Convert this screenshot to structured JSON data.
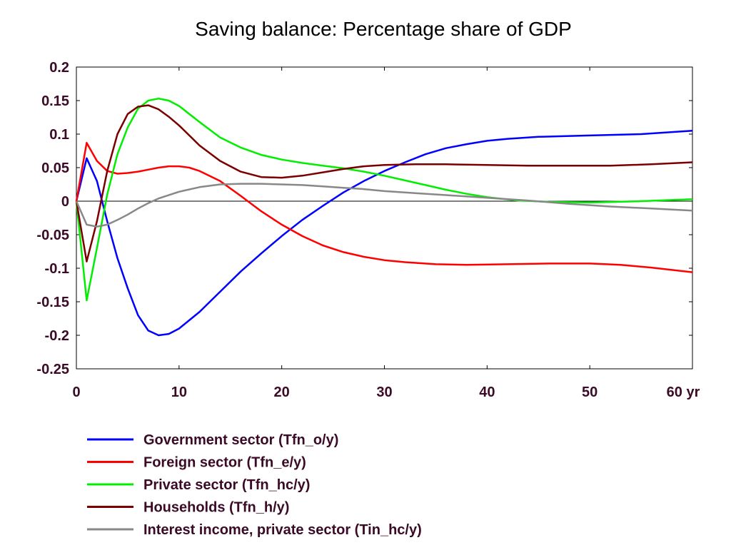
{
  "chart_data": {
    "type": "line",
    "title": "Saving balance: Percentage share of GDP",
    "xlabel": "",
    "ylabel": "",
    "x_unit_label": "yr",
    "xlim": [
      0,
      60
    ],
    "ylim": [
      -0.25,
      0.2
    ],
    "x_ticks": [
      0,
      10,
      20,
      30,
      40,
      50,
      60
    ],
    "x_tick_labels": [
      "0",
      "10",
      "20",
      "30",
      "40",
      "50",
      "60 yr"
    ],
    "y_ticks": [
      0.2,
      0.15,
      0.1,
      0.05,
      0,
      -0.05,
      -0.1,
      -0.15,
      -0.2,
      -0.25
    ],
    "y_tick_labels": [
      "0.2",
      "0.15",
      "0.1",
      "0.05",
      "0",
      "-0.05",
      "-0.1",
      "-0.15",
      "-0.2",
      "-0.25"
    ],
    "grid": false,
    "zero_line": true,
    "legend_position": "below",
    "series": [
      {
        "name": "Government sector (Tfn_o/y)",
        "color": "#0000ff",
        "points": [
          [
            0,
            0
          ],
          [
            1,
            0.064
          ],
          [
            2,
            0.03
          ],
          [
            3,
            -0.03
          ],
          [
            4,
            -0.085
          ],
          [
            5,
            -0.13
          ],
          [
            6,
            -0.17
          ],
          [
            7,
            -0.193
          ],
          [
            8,
            -0.2
          ],
          [
            9,
            -0.198
          ],
          [
            10,
            -0.19
          ],
          [
            12,
            -0.165
          ],
          [
            14,
            -0.135
          ],
          [
            16,
            -0.105
          ],
          [
            18,
            -0.078
          ],
          [
            20,
            -0.052
          ],
          [
            22,
            -0.028
          ],
          [
            24,
            -0.007
          ],
          [
            26,
            0.013
          ],
          [
            28,
            0.03
          ],
          [
            30,
            0.045
          ],
          [
            32,
            0.058
          ],
          [
            34,
            0.07
          ],
          [
            36,
            0.079
          ],
          [
            38,
            0.085
          ],
          [
            40,
            0.09
          ],
          [
            42,
            0.093
          ],
          [
            45,
            0.096
          ],
          [
            50,
            0.098
          ],
          [
            55,
            0.1
          ],
          [
            60,
            0.105
          ]
        ]
      },
      {
        "name": "Foreign sector (Tfn_e/y)",
        "color": "#ff0000",
        "points": [
          [
            0,
            0
          ],
          [
            1,
            0.087
          ],
          [
            2,
            0.06
          ],
          [
            3,
            0.045
          ],
          [
            4,
            0.041
          ],
          [
            5,
            0.042
          ],
          [
            6,
            0.044
          ],
          [
            7,
            0.047
          ],
          [
            8,
            0.05
          ],
          [
            9,
            0.052
          ],
          [
            10,
            0.052
          ],
          [
            11,
            0.05
          ],
          [
            12,
            0.045
          ],
          [
            14,
            0.03
          ],
          [
            16,
            0.008
          ],
          [
            18,
            -0.015
          ],
          [
            20,
            -0.035
          ],
          [
            22,
            -0.052
          ],
          [
            24,
            -0.066
          ],
          [
            26,
            -0.076
          ],
          [
            28,
            -0.083
          ],
          [
            30,
            -0.088
          ],
          [
            32,
            -0.091
          ],
          [
            35,
            -0.094
          ],
          [
            38,
            -0.095
          ],
          [
            42,
            -0.094
          ],
          [
            46,
            -0.093
          ],
          [
            50,
            -0.093
          ],
          [
            53,
            -0.095
          ],
          [
            56,
            -0.099
          ],
          [
            60,
            -0.106
          ]
        ]
      },
      {
        "name": "Private sector (Tfn_hc/y)",
        "color": "#00ee00",
        "points": [
          [
            0,
            0
          ],
          [
            1,
            -0.148
          ],
          [
            2,
            -0.07
          ],
          [
            3,
            0.01
          ],
          [
            4,
            0.07
          ],
          [
            5,
            0.11
          ],
          [
            6,
            0.138
          ],
          [
            7,
            0.15
          ],
          [
            8,
            0.153
          ],
          [
            9,
            0.15
          ],
          [
            10,
            0.142
          ],
          [
            12,
            0.118
          ],
          [
            14,
            0.095
          ],
          [
            16,
            0.08
          ],
          [
            18,
            0.069
          ],
          [
            20,
            0.062
          ],
          [
            22,
            0.057
          ],
          [
            24,
            0.053
          ],
          [
            26,
            0.049
          ],
          [
            28,
            0.044
          ],
          [
            30,
            0.038
          ],
          [
            32,
            0.031
          ],
          [
            34,
            0.024
          ],
          [
            36,
            0.017
          ],
          [
            38,
            0.011
          ],
          [
            40,
            0.006
          ],
          [
            43,
            0.001
          ],
          [
            46,
            -0.001
          ],
          [
            50,
            -0.002
          ],
          [
            55,
            0.0
          ],
          [
            60,
            0.003
          ]
        ]
      },
      {
        "name": "Households (Tfn_h/y)",
        "color": "#7a0000",
        "points": [
          [
            0,
            0
          ],
          [
            1,
            -0.09
          ],
          [
            2,
            -0.03
          ],
          [
            3,
            0.045
          ],
          [
            4,
            0.1
          ],
          [
            5,
            0.13
          ],
          [
            6,
            0.141
          ],
          [
            7,
            0.143
          ],
          [
            8,
            0.137
          ],
          [
            9,
            0.126
          ],
          [
            10,
            0.113
          ],
          [
            12,
            0.083
          ],
          [
            14,
            0.06
          ],
          [
            16,
            0.044
          ],
          [
            18,
            0.036
          ],
          [
            20,
            0.035
          ],
          [
            22,
            0.038
          ],
          [
            24,
            0.043
          ],
          [
            26,
            0.048
          ],
          [
            28,
            0.052
          ],
          [
            30,
            0.054
          ],
          [
            33,
            0.055
          ],
          [
            36,
            0.055
          ],
          [
            40,
            0.054
          ],
          [
            44,
            0.053
          ],
          [
            48,
            0.053
          ],
          [
            52,
            0.053
          ],
          [
            56,
            0.055
          ],
          [
            60,
            0.058
          ]
        ]
      },
      {
        "name": "Interest income, private sector (Tin_hc/y)",
        "color": "#888888",
        "points": [
          [
            0,
            0
          ],
          [
            1,
            -0.035
          ],
          [
            2,
            -0.038
          ],
          [
            3,
            -0.035
          ],
          [
            4,
            -0.028
          ],
          [
            5,
            -0.02
          ],
          [
            6,
            -0.011
          ],
          [
            7,
            -0.003
          ],
          [
            8,
            0.004
          ],
          [
            10,
            0.014
          ],
          [
            12,
            0.021
          ],
          [
            14,
            0.025
          ],
          [
            16,
            0.026
          ],
          [
            18,
            0.026
          ],
          [
            20,
            0.025
          ],
          [
            22,
            0.024
          ],
          [
            24,
            0.022
          ],
          [
            26,
            0.02
          ],
          [
            28,
            0.018
          ],
          [
            30,
            0.015
          ],
          [
            33,
            0.012
          ],
          [
            36,
            0.009
          ],
          [
            40,
            0.005
          ],
          [
            44,
            0.001
          ],
          [
            48,
            -0.004
          ],
          [
            52,
            -0.008
          ],
          [
            56,
            -0.011
          ],
          [
            60,
            -0.014
          ]
        ]
      }
    ]
  }
}
